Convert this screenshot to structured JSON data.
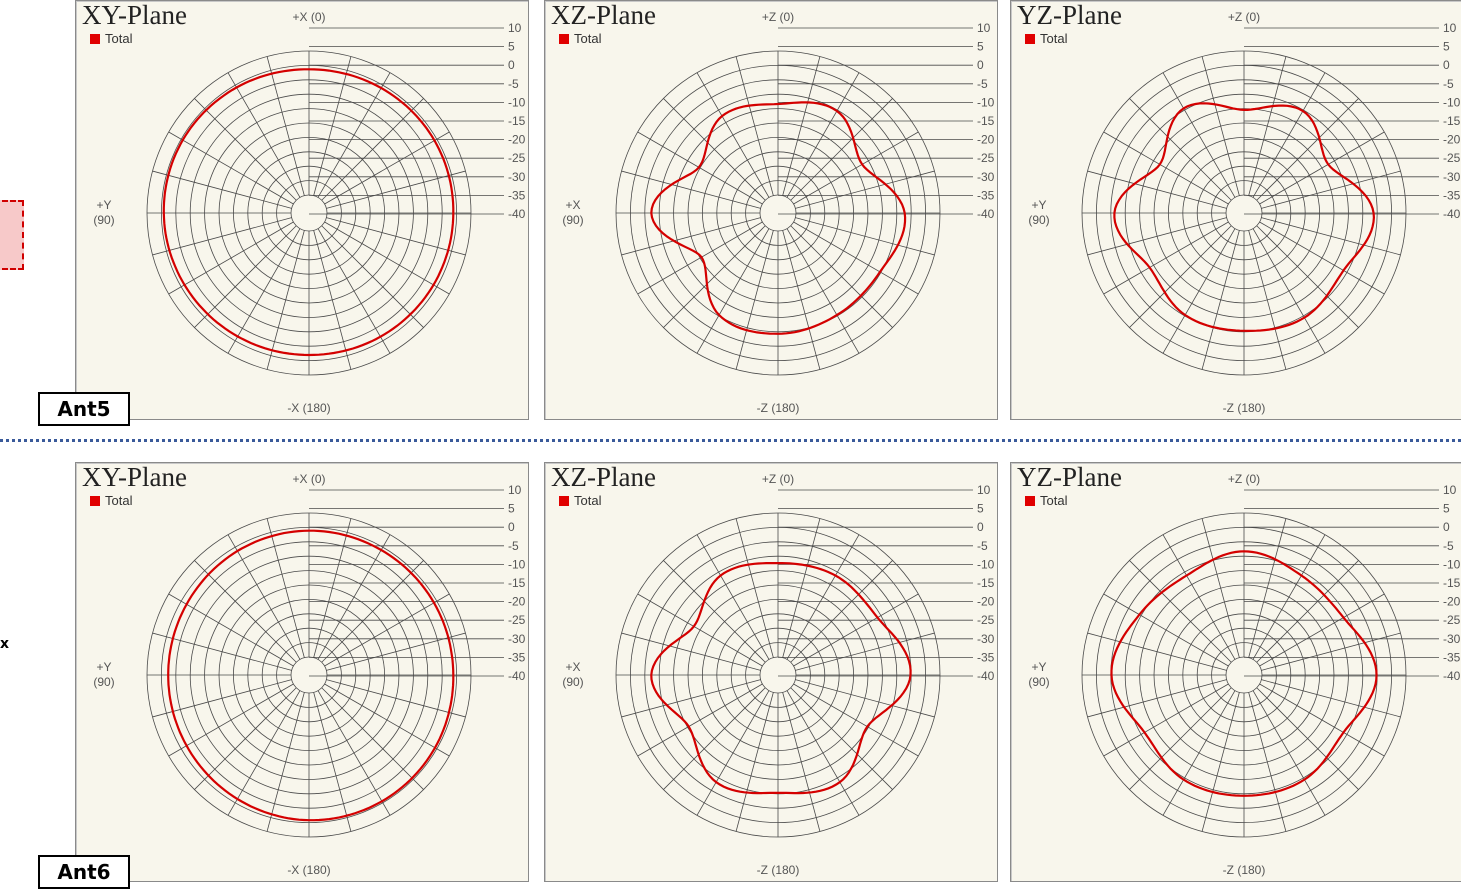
{
  "side_labels": {
    "x_label": "x"
  },
  "rows": [
    {
      "antenna": "Ant5"
    },
    {
      "antenna": "Ant6"
    }
  ],
  "colors": {
    "curve": "#d40000",
    "panel_bg": "#f8f6ec",
    "divider": "#3a5a9a"
  },
  "chart_data": [
    {
      "type": "polar",
      "title": "XY-Plane",
      "legend": [
        "Total"
      ],
      "row": "Ant5",
      "axis_labels": {
        "top": "+X (0)",
        "left_line1": "+Y",
        "left_line2": "(90)",
        "bottom": "-X (180)"
      },
      "r_ticks": [
        "10",
        "5",
        "0",
        "-5",
        "-10",
        "-15",
        "-20",
        "-25",
        "-30",
        "-35",
        "-40"
      ],
      "rlim": [
        -45,
        10
      ],
      "series": [
        {
          "name": "Total",
          "angles_deg": [
            0,
            30,
            60,
            90,
            120,
            150,
            180,
            210,
            240,
            270,
            300,
            330
          ],
          "values_db": [
            3.8,
            4.2,
            4.5,
            4.3,
            3.8,
            3.4,
            3.2,
            3.5,
            3.8,
            4.0,
            4.2,
            4.0
          ]
        }
      ]
    },
    {
      "type": "polar",
      "title": "XZ-Plane",
      "legend": [
        "Total"
      ],
      "row": "Ant5",
      "axis_labels": {
        "top": "+Z (0)",
        "left_line1": "+X",
        "left_line2": "(90)",
        "bottom": "-Z (180)"
      },
      "r_ticks": [
        "10",
        "5",
        "0",
        "-5",
        "-10",
        "-15",
        "-20",
        "-25",
        "-30",
        "-35",
        "-40"
      ],
      "rlim": [
        -45,
        10
      ],
      "series": [
        {
          "name": "Total",
          "angles_deg": [
            0,
            30,
            60,
            90,
            120,
            150,
            180,
            210,
            240,
            270,
            300,
            330
          ],
          "values_db": [
            -8,
            -7,
            -14,
            -2,
            -15,
            -5,
            -4,
            -5,
            -5,
            -2,
            -12,
            -5
          ]
        }
      ]
    },
    {
      "type": "polar",
      "title": "YZ-Plane",
      "legend": [
        "Total"
      ],
      "row": "Ant5",
      "axis_labels": {
        "top": "+Z (0)",
        "left_line1": "+Y",
        "left_line2": "(90)",
        "bottom": "-Z (180)"
      },
      "r_ticks": [
        "10",
        "5",
        "0",
        "-5",
        "-10",
        "-15",
        "-20",
        "-25",
        "-30",
        "-35",
        "-40"
      ],
      "rlim": [
        -45,
        10
      ],
      "series": [
        {
          "name": "Total",
          "angles_deg": [
            0,
            30,
            60,
            90,
            120,
            150,
            180,
            210,
            240,
            270,
            300,
            330
          ],
          "values_db": [
            -10,
            -4,
            -12,
            -1,
            -8,
            -5,
            -5,
            -4,
            -6,
            -1,
            -12,
            -5
          ]
        }
      ]
    },
    {
      "type": "polar",
      "title": "XY-Plane",
      "legend": [
        "Total"
      ],
      "row": "Ant6",
      "axis_labels": {
        "top": "+X (0)",
        "left_line1": "+Y",
        "left_line2": "(90)",
        "bottom": "-X (180)"
      },
      "r_ticks": [
        "10",
        "5",
        "0",
        "-5",
        "-10",
        "-15",
        "-20",
        "-25",
        "-30",
        "-35",
        "-40"
      ],
      "rlim": [
        -45,
        10
      ],
      "series": [
        {
          "name": "Total",
          "angles_deg": [
            0,
            30,
            60,
            90,
            120,
            150,
            180,
            210,
            240,
            270,
            300,
            330
          ],
          "values_db": [
            4.0,
            3.6,
            3.0,
            2.8,
            3.0,
            3.6,
            4.3,
            4.5,
            4.4,
            4.0,
            4.0,
            4.0
          ]
        }
      ]
    },
    {
      "type": "polar",
      "title": "XZ-Plane",
      "legend": [
        "Total"
      ],
      "row": "Ant6",
      "axis_labels": {
        "top": "+Z (0)",
        "left_line1": "+X",
        "left_line2": "(90)",
        "bottom": "-Z (180)"
      },
      "r_ticks": [
        "10",
        "5",
        "0",
        "-5",
        "-10",
        "-15",
        "-20",
        "-25",
        "-30",
        "-35",
        "-40"
      ],
      "rlim": [
        -45,
        10
      ],
      "series": [
        {
          "name": "Total",
          "angles_deg": [
            0,
            30,
            60,
            90,
            120,
            150,
            180,
            210,
            240,
            270,
            300,
            330
          ],
          "values_db": [
            -7,
            -6,
            -12,
            -2,
            -10,
            -3,
            -5,
            -3,
            -10,
            0,
            -6,
            -6
          ]
        }
      ]
    },
    {
      "type": "polar",
      "title": "YZ-Plane",
      "legend": [
        "Total"
      ],
      "row": "Ant6",
      "axis_labels": {
        "top": "+Z (0)",
        "left_line1": "+Y",
        "left_line2": "(90)",
        "bottom": "-Z (180)"
      },
      "r_ticks": [
        "10",
        "5",
        "0",
        "-5",
        "-10",
        "-15",
        "-20",
        "-25",
        "-30",
        "-35",
        "-40"
      ],
      "rlim": [
        -45,
        10
      ],
      "series": [
        {
          "name": "Total",
          "angles_deg": [
            0,
            30,
            60,
            90,
            120,
            150,
            180,
            210,
            240,
            270,
            300,
            330
          ],
          "values_db": [
            -3,
            -6,
            -4,
            0,
            -6,
            -4,
            -4,
            -4,
            -6,
            0,
            -6,
            -6
          ]
        }
      ]
    }
  ]
}
